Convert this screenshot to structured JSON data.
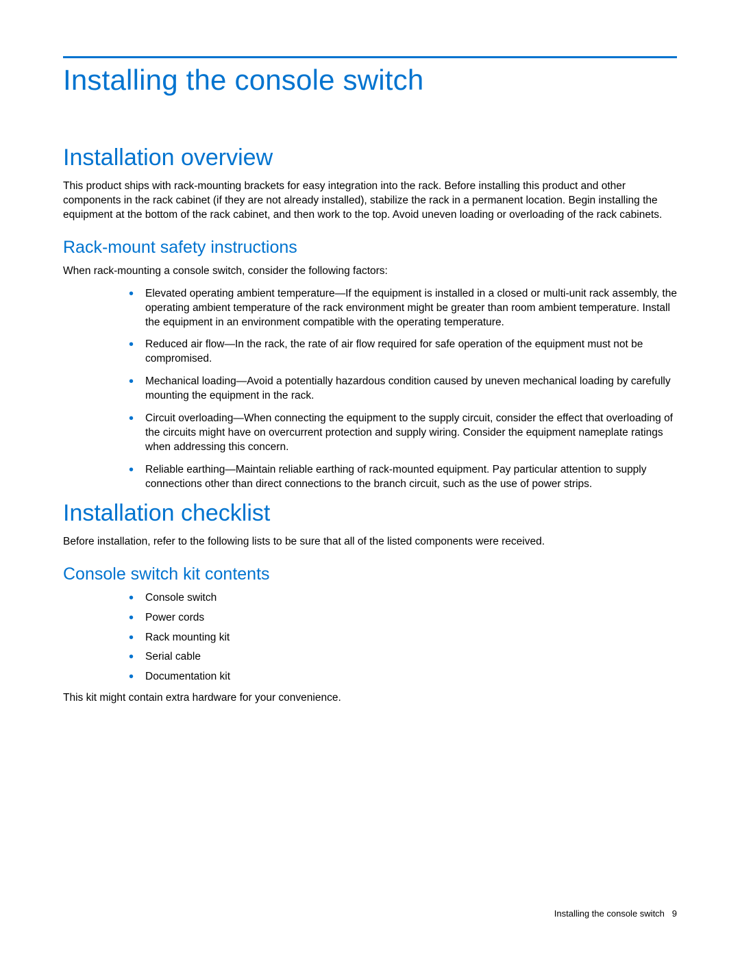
{
  "colors": {
    "accent": "#0073cf",
    "rule": "#0073cf",
    "text": "#000000",
    "background": "#ffffff"
  },
  "typography": {
    "body_fontsize": 15.5,
    "h1_fontsize": 42,
    "h2_fontsize": 34,
    "h3_fontsize": 25,
    "footer_fontsize": 13,
    "font_family": "Segoe UI / Helvetica Neue / Arial"
  },
  "page": {
    "title": "Installing the console switch",
    "footer_text": "Installing the console switch",
    "footer_page_number": "9"
  },
  "overview": {
    "heading": "Installation overview",
    "body": "This product ships with rack-mounting brackets for easy integration into the rack. Before installing this product and other components in the rack cabinet (if they are not already installed), stabilize the rack in a permanent location. Begin installing the equipment at the bottom of the rack cabinet, and then work to the top. Avoid uneven loading or overloading of the rack cabinets."
  },
  "rack_mount": {
    "heading": "Rack-mount safety instructions",
    "intro": "When rack-mounting a console switch, consider the following factors:",
    "items": [
      "Elevated operating ambient temperature—If the equipment is installed in a closed or multi-unit rack assembly, the operating ambient temperature of the rack environment might be greater than room ambient temperature. Install the equipment in an environment compatible with the operating temperature.",
      "Reduced air flow—In the rack, the rate of air flow required for safe operation of the equipment must not be compromised.",
      "Mechanical loading—Avoid a potentially hazardous condition caused by uneven mechanical loading by carefully mounting the equipment in the rack.",
      "Circuit overloading—When connecting the equipment to the supply circuit, consider the effect that overloading of the circuits might have on overcurrent protection and supply wiring. Consider the equipment nameplate ratings when addressing this concern.",
      "Reliable earthing—Maintain reliable earthing of rack-mounted equipment. Pay particular attention to supply connections other than direct connections to the branch circuit, such as the use of power strips."
    ]
  },
  "checklist": {
    "heading": "Installation checklist",
    "intro": "Before installation, refer to the following lists to be sure that all of the listed components were received."
  },
  "kit": {
    "heading": "Console switch kit contents",
    "items": [
      "Console switch",
      "Power cords",
      "Rack mounting kit",
      "Serial cable",
      "Documentation kit"
    ],
    "note": "This kit might contain extra hardware for your convenience."
  }
}
